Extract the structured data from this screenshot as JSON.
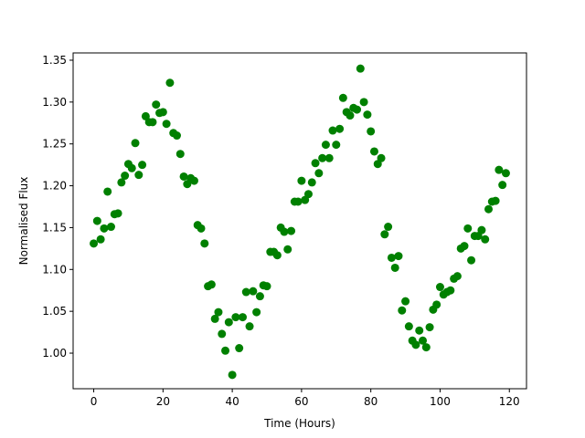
{
  "chart_data": {
    "type": "scatter",
    "xlabel": "Time (Hours)",
    "ylabel": "Normalised Flux",
    "color": "#008000",
    "x": [
      0,
      1,
      2,
      3,
      4,
      5,
      6,
      7,
      8,
      9,
      10,
      11,
      12,
      13,
      14,
      15,
      16,
      17,
      18,
      19,
      20,
      21,
      22,
      23,
      24,
      25,
      26,
      27,
      28,
      29,
      30,
      31,
      32,
      33,
      34,
      35,
      36,
      37,
      38,
      39,
      40,
      41,
      42,
      43,
      44,
      45,
      46,
      47,
      48,
      49,
      50,
      51,
      52,
      53,
      54,
      55,
      56,
      57,
      58,
      59,
      60,
      61,
      62,
      63,
      64,
      65,
      66,
      67,
      68,
      69,
      70,
      71,
      72,
      73,
      74,
      75,
      76,
      77,
      78,
      79,
      80,
      81,
      82,
      83,
      84,
      85,
      86,
      87,
      88,
      89,
      90,
      91,
      92,
      93,
      94,
      95,
      96,
      97,
      98,
      99,
      100,
      101,
      102,
      103,
      104,
      105,
      106,
      107,
      108,
      109,
      110,
      111,
      112,
      113,
      114,
      115,
      116,
      117,
      118,
      119
    ],
    "values": [
      1.131,
      1.158,
      1.136,
      1.149,
      1.193,
      1.151,
      1.166,
      1.167,
      1.204,
      1.212,
      1.226,
      1.221,
      1.251,
      1.213,
      1.225,
      1.283,
      1.276,
      1.276,
      1.297,
      1.287,
      1.288,
      1.274,
      1.323,
      1.263,
      1.26,
      1.238,
      1.211,
      1.202,
      1.209,
      1.206,
      1.153,
      1.149,
      1.131,
      1.08,
      1.082,
      1.041,
      1.049,
      1.023,
      1.003,
      1.037,
      0.974,
      1.043,
      1.006,
      1.043,
      1.073,
      1.032,
      1.074,
      1.049,
      1.068,
      1.081,
      1.08,
      1.121,
      1.121,
      1.117,
      1.15,
      1.145,
      1.124,
      1.146,
      1.181,
      1.181,
      1.206,
      1.183,
      1.19,
      1.204,
      1.227,
      1.215,
      1.233,
      1.249,
      1.233,
      1.266,
      1.249,
      1.268,
      1.305,
      1.288,
      1.284,
      1.293,
      1.291,
      1.34,
      1.3,
      1.285,
      1.265,
      1.241,
      1.226,
      1.233,
      1.142,
      1.151,
      1.114,
      1.102,
      1.116,
      1.051,
      1.062,
      1.032,
      1.015,
      1.01,
      1.027,
      1.015,
      1.007,
      1.031,
      1.052,
      1.058,
      1.079,
      1.07,
      1.073,
      1.075,
      1.089,
      1.092,
      1.125,
      1.128,
      1.149,
      1.111,
      1.14,
      1.14,
      1.147,
      1.136,
      1.172,
      1.181,
      1.182,
      1.219,
      1.201,
      1.215
    ],
    "xlim": [
      -5.95,
      124.95
    ],
    "ylim": [
      0.9575,
      1.3587
    ],
    "xticks": [
      0,
      20,
      40,
      60,
      80,
      100,
      120
    ],
    "yticks": [
      {
        "value": 1.0,
        "label": "1.00"
      },
      1.05,
      {
        "value": 1.1,
        "label": "1.10"
      },
      1.15,
      {
        "value": 1.2,
        "label": "1.20"
      },
      1.25,
      {
        "value": 1.3,
        "label": "1.30"
      },
      1.35
    ]
  }
}
